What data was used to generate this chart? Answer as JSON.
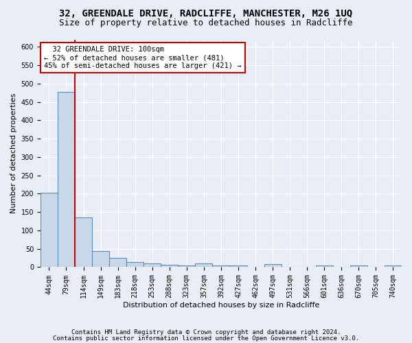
{
  "title1": "32, GREENDALE DRIVE, RADCLIFFE, MANCHESTER, M26 1UQ",
  "title2": "Size of property relative to detached houses in Radcliffe",
  "xlabel": "Distribution of detached houses by size in Radcliffe",
  "ylabel": "Number of detached properties",
  "footnote1": "Contains HM Land Registry data © Crown copyright and database right 2024.",
  "footnote2": "Contains public sector information licensed under the Open Government Licence v3.0.",
  "bin_labels": [
    "44sqm",
    "79sqm",
    "114sqm",
    "149sqm",
    "183sqm",
    "218sqm",
    "253sqm",
    "288sqm",
    "323sqm",
    "357sqm",
    "392sqm",
    "427sqm",
    "462sqm",
    "497sqm",
    "531sqm",
    "566sqm",
    "601sqm",
    "636sqm",
    "670sqm",
    "705sqm",
    "740sqm"
  ],
  "bar_values": [
    203,
    478,
    135,
    43,
    25,
    14,
    11,
    6,
    5,
    11,
    5,
    5,
    0,
    8,
    0,
    0,
    5,
    0,
    5,
    0,
    5
  ],
  "bar_color": "#c8d8e8",
  "bar_edge_color": "#5b8db8",
  "bar_edge_width": 0.8,
  "red_line_bin_index": 1.5,
  "red_line_color": "#cc0000",
  "annotation_box_text": "  32 GREENDALE DRIVE: 100sqm\n← 52% of detached houses are smaller (481)\n45% of semi-detached houses are larger (421) →",
  "annotation_box_color": "#ffffff",
  "annotation_box_edge_color": "#cc0000",
  "ylim": [
    0,
    620
  ],
  "yticks": [
    0,
    50,
    100,
    150,
    200,
    250,
    300,
    350,
    400,
    450,
    500,
    550,
    600
  ],
  "bg_color": "#e8eef5",
  "plot_bg_color": "#e8eef5",
  "grid_color": "#ffffff",
  "title1_fontsize": 10,
  "title2_fontsize": 9,
  "axis_label_fontsize": 8,
  "tick_fontsize": 7,
  "annotation_fontsize": 7.5,
  "footnote_fontsize": 6.5
}
